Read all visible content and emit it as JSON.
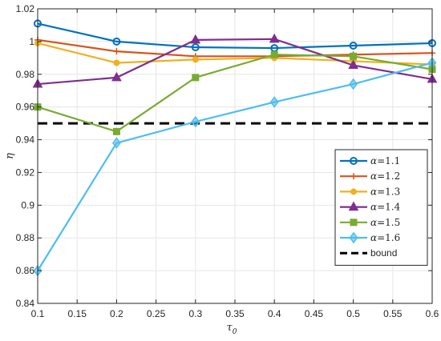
{
  "chart_data": {
    "type": "line",
    "title": "",
    "xlabel": "τ",
    "xlabel_sub": "0",
    "ylabel": "η",
    "xlim": [
      0.1,
      0.6
    ],
    "ylim": [
      0.84,
      1.02
    ],
    "xticks": [
      0.1,
      0.15,
      0.2,
      0.25,
      0.3,
      0.35,
      0.4,
      0.45,
      0.5,
      0.55,
      0.6
    ],
    "xtick_labels": [
      "0.1",
      "0.15",
      "0.2",
      "0.25",
      "0.3",
      "0.35",
      "0.4",
      "0.45",
      "0.5",
      "0.55",
      "0.6"
    ],
    "yticks": [
      0.84,
      0.86,
      0.88,
      0.9,
      0.92,
      0.94,
      0.96,
      0.98,
      1.0,
      1.02
    ],
    "ytick_labels": [
      "0.84",
      "0.86",
      "0.88",
      "0.9",
      "0.92",
      "0.94",
      "0.96",
      "0.98",
      "1",
      "1.02"
    ],
    "grid": true,
    "legend_position": "bottom-right",
    "x": [
      0.1,
      0.2,
      0.3,
      0.4,
      0.5,
      0.6
    ],
    "series": [
      {
        "name": "α=1.1",
        "name_prefix": "α",
        "name_value": "=1.1",
        "color": "#0072BD",
        "marker": "circle",
        "values": [
          1.011,
          1.0,
          0.9965,
          0.996,
          0.9975,
          0.999
        ]
      },
      {
        "name": "α=1.2",
        "name_prefix": "α",
        "name_value": "=1.2",
        "color": "#D95319",
        "marker": "plus",
        "values": [
          1.001,
          0.994,
          0.991,
          0.991,
          0.992,
          0.993
        ]
      },
      {
        "name": "α=1.3",
        "name_prefix": "α",
        "name_value": "=1.3",
        "color": "#EDB120",
        "marker": "dot",
        "values": [
          0.999,
          0.987,
          0.989,
          0.99,
          0.988,
          0.986
        ]
      },
      {
        "name": "α=1.4",
        "name_prefix": "α",
        "name_value": "=1.4",
        "color": "#7E2F8E",
        "marker": "triangle",
        "values": [
          0.974,
          0.978,
          1.001,
          1.0015,
          0.9855,
          0.977
        ]
      },
      {
        "name": "α=1.5",
        "name_prefix": "α",
        "name_value": "=1.5",
        "color": "#77AC30",
        "marker": "square",
        "values": [
          0.96,
          0.945,
          0.978,
          0.992,
          0.991,
          0.983
        ]
      },
      {
        "name": "α=1.6",
        "name_prefix": "α",
        "name_value": "=1.6",
        "color": "#4DBEEE",
        "marker": "diamond",
        "values": [
          0.86,
          0.938,
          0.951,
          0.963,
          0.974,
          0.987
        ]
      }
    ],
    "bound": {
      "name": "bound",
      "value": 0.95,
      "color": "#000000"
    }
  }
}
